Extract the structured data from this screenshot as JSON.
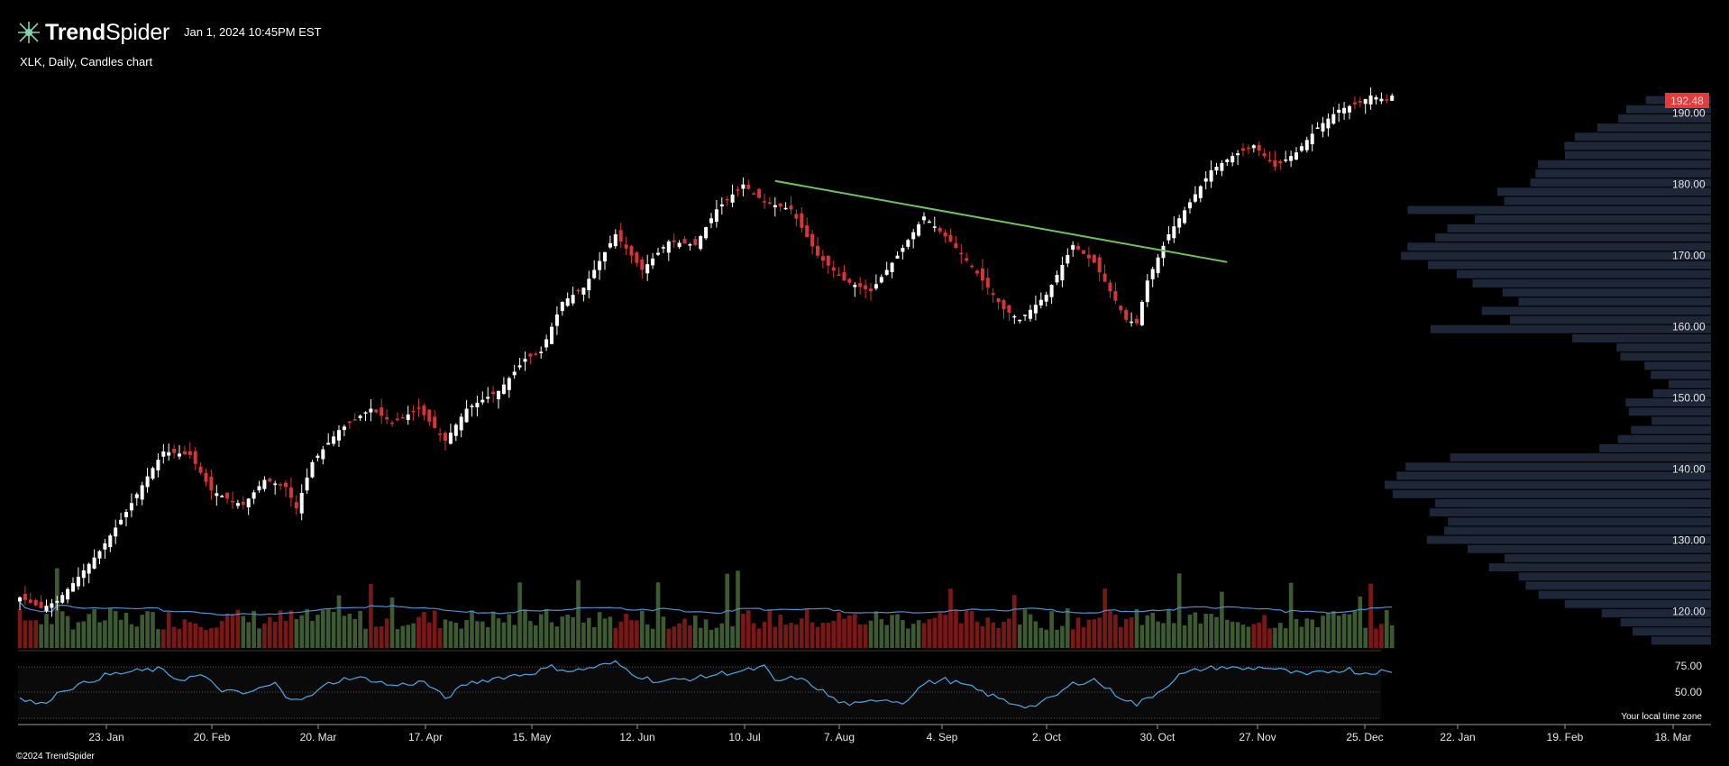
{
  "header": {
    "brand_bold": "Trend",
    "brand_light": "Spider",
    "timestamp": "Jan 1, 2024 10:45PM EST",
    "chart_description": "XLK, Daily, Candles chart"
  },
  "footer": {
    "copyright": "©2024 TrendSpider",
    "timezone_note": "Your local time zone"
  },
  "colors": {
    "background": "#000000",
    "candle_up": "#ffffff",
    "candle_down": "#d8343a",
    "volume_up": "#3d5a32",
    "volume_down": "#7a1818",
    "volume_ma": "#4a8fd0",
    "trendline": "#6fc25f",
    "volume_profile": "#1d2738",
    "rsi_line": "#4aa8e6",
    "last_price_bg": "#e63b3b"
  },
  "chart_data": {
    "type": "candlestick",
    "symbol": "XLK",
    "interval": "Daily",
    "last_price": "192.48",
    "price_axis": {
      "ylim": [
        116,
        194
      ],
      "ticks": [
        "190.00",
        "180.00",
        "170.00",
        "160.00",
        "150.00",
        "140.00",
        "130.00",
        "120.00"
      ]
    },
    "time_axis": {
      "ticks": [
        "23. Jan",
        "20. Feb",
        "20. Mar",
        "17. Apr",
        "15. May",
        "12. Jun",
        "10. Jul",
        "7. Aug",
        "4. Sep",
        "2. Oct",
        "30. Oct",
        "27. Nov",
        "25. Dec",
        "22. Jan",
        "19. Feb",
        "18. Mar"
      ]
    },
    "price_path": [
      [
        0,
        122.0
      ],
      [
        4,
        120.5
      ],
      [
        7,
        121.5
      ],
      [
        10,
        124.0
      ],
      [
        15,
        128.5
      ],
      [
        20,
        134.0
      ],
      [
        24,
        139.0
      ],
      [
        27,
        142.5
      ],
      [
        32,
        142.0
      ],
      [
        36,
        137.0
      ],
      [
        40,
        135.5
      ],
      [
        42,
        135.0
      ],
      [
        46,
        138.5
      ],
      [
        50,
        137.5
      ],
      [
        52,
        134.5
      ],
      [
        55,
        141.0
      ],
      [
        60,
        145.5
      ],
      [
        66,
        148.5
      ],
      [
        70,
        146.5
      ],
      [
        75,
        148.5
      ],
      [
        80,
        144.0
      ],
      [
        84,
        148.5
      ],
      [
        90,
        151.0
      ],
      [
        95,
        155.5
      ],
      [
        98,
        156.5
      ],
      [
        102,
        163.5
      ],
      [
        106,
        165.5
      ],
      [
        112,
        173.0
      ],
      [
        117,
        168.0
      ],
      [
        122,
        172.0
      ],
      [
        127,
        171.5
      ],
      [
        131,
        176.5
      ],
      [
        136,
        180.0
      ],
      [
        140,
        177.5
      ],
      [
        145,
        176.5
      ],
      [
        150,
        170.0
      ],
      [
        155,
        166.5
      ],
      [
        160,
        165.0
      ],
      [
        165,
        170.0
      ],
      [
        170,
        175.5
      ],
      [
        175,
        172.0
      ],
      [
        180,
        167.5
      ],
      [
        185,
        162.5
      ],
      [
        188,
        161.0
      ],
      [
        193,
        164.5
      ],
      [
        198,
        171.5
      ],
      [
        202,
        169.0
      ],
      [
        205,
        165.0
      ],
      [
        208,
        161.0
      ],
      [
        210,
        160.5
      ],
      [
        212,
        166.5
      ],
      [
        216,
        173.0
      ],
      [
        220,
        177.5
      ],
      [
        224,
        182.0
      ],
      [
        228,
        184.0
      ],
      [
        232,
        185.5
      ],
      [
        236,
        182.5
      ],
      [
        240,
        184.5
      ],
      [
        244,
        188.0
      ],
      [
        248,
        190.5
      ],
      [
        252,
        191.5
      ],
      [
        254,
        192.5
      ],
      [
        257,
        191.8
      ],
      [
        258,
        192.48
      ]
    ],
    "trendline": [
      [
        142,
        180.5
      ],
      [
        227,
        169.1
      ]
    ],
    "rsi": {
      "ticks": [
        "75.00",
        "50.00"
      ],
      "path": [
        [
          0,
          44
        ],
        [
          4,
          38
        ],
        [
          8,
          52
        ],
        [
          12,
          58
        ],
        [
          16,
          66
        ],
        [
          22,
          70
        ],
        [
          26,
          72
        ],
        [
          30,
          62
        ],
        [
          34,
          66
        ],
        [
          38,
          52
        ],
        [
          42,
          48
        ],
        [
          48,
          58
        ],
        [
          50,
          46
        ],
        [
          54,
          44
        ],
        [
          58,
          58
        ],
        [
          62,
          64
        ],
        [
          66,
          62
        ],
        [
          70,
          56
        ],
        [
          76,
          60
        ],
        [
          80,
          44
        ],
        [
          84,
          58
        ],
        [
          90,
          64
        ],
        [
          96,
          68
        ],
        [
          100,
          74
        ],
        [
          104,
          70
        ],
        [
          108,
          74
        ],
        [
          112,
          78
        ],
        [
          116,
          66
        ],
        [
          120,
          60
        ],
        [
          124,
          62
        ],
        [
          128,
          64
        ],
        [
          132,
          68
        ],
        [
          136,
          70
        ],
        [
          140,
          74
        ],
        [
          142,
          60
        ],
        [
          146,
          64
        ],
        [
          150,
          54
        ],
        [
          154,
          40
        ],
        [
          158,
          38
        ],
        [
          162,
          44
        ],
        [
          166,
          40
        ],
        [
          170,
          58
        ],
        [
          174,
          62
        ],
        [
          178,
          56
        ],
        [
          182,
          48
        ],
        [
          186,
          40
        ],
        [
          190,
          36
        ],
        [
          194,
          44
        ],
        [
          198,
          58
        ],
        [
          202,
          62
        ],
        [
          206,
          48
        ],
        [
          210,
          38
        ],
        [
          214,
          50
        ],
        [
          218,
          66
        ],
        [
          222,
          72
        ],
        [
          226,
          74
        ],
        [
          230,
          72
        ],
        [
          234,
          74
        ],
        [
          238,
          70
        ],
        [
          242,
          66
        ],
        [
          246,
          70
        ],
        [
          250,
          72
        ],
        [
          252,
          68
        ],
        [
          256,
          70
        ],
        [
          258,
          68
        ]
      ]
    },
    "volume_profile_note": "horizontal volume-at-price bars on right side"
  }
}
